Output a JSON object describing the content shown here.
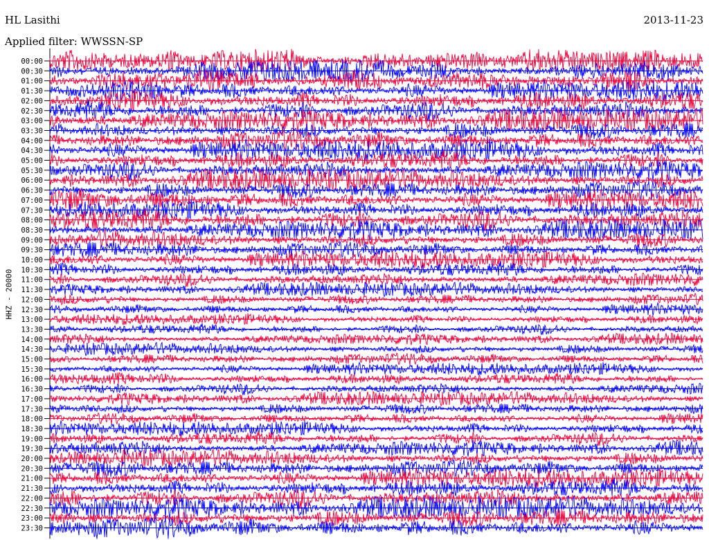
{
  "header": {
    "station": "HL Lasithi",
    "date": "2013-11-23",
    "filter": "Applied filter: WWSSN-SP"
  },
  "chart_data": {
    "type": "line",
    "ylabel": "HHZ - 20000",
    "rows": [
      "00:00",
      "00:30",
      "01:00",
      "01:30",
      "02:00",
      "02:30",
      "03:00",
      "03:30",
      "04:00",
      "04:30",
      "05:00",
      "05:30",
      "06:00",
      "06:30",
      "07:00",
      "07:30",
      "08:00",
      "08:30",
      "09:00",
      "09:30",
      "10:00",
      "10:30",
      "11:00",
      "11:30",
      "12:00",
      "12:30",
      "13:00",
      "13:30",
      "14:00",
      "14:30",
      "15:00",
      "15:30",
      "16:00",
      "16:30",
      "17:00",
      "17:30",
      "18:00",
      "18:30",
      "19:00",
      "19:30",
      "20:00",
      "20:30",
      "21:00",
      "21:30",
      "22:00",
      "22:30",
      "23:00",
      "23:30"
    ],
    "row_amplitude": [
      1.0,
      1.0,
      1.0,
      0.95,
      1.0,
      0.95,
      1.0,
      0.95,
      0.95,
      0.95,
      0.9,
      0.9,
      0.95,
      0.9,
      0.95,
      0.9,
      1.0,
      0.9,
      0.85,
      0.75,
      0.8,
      0.7,
      0.65,
      0.6,
      0.55,
      0.55,
      0.5,
      0.5,
      0.5,
      0.55,
      0.55,
      0.55,
      0.55,
      0.55,
      0.6,
      0.6,
      0.6,
      0.65,
      0.65,
      0.7,
      0.75,
      0.8,
      0.85,
      0.9,
      0.95,
      1.0,
      1.0,
      1.0
    ],
    "colors": [
      "#e8003a",
      "#0000ff"
    ],
    "grid": false
  }
}
